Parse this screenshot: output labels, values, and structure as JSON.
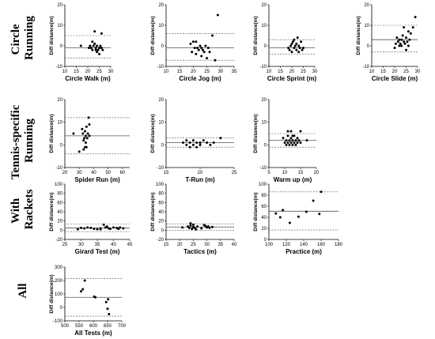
{
  "row_labels": [
    [
      "Circle",
      "Running"
    ],
    [
      "Tennis-specific",
      "Running"
    ],
    [
      "With",
      "Rackets"
    ],
    [
      "All"
    ]
  ],
  "chart_data": [
    {
      "type": "scatter",
      "xlabel": "Circle Walk (m)",
      "ylabel": "Diff distance(m)",
      "xlim": [
        10,
        30
      ],
      "ylim": [
        -10,
        20
      ],
      "xticks": [
        10,
        15,
        20,
        25,
        30
      ],
      "yticks": [
        -10,
        0,
        10,
        20
      ],
      "hlines": [
        5,
        -1,
        -6
      ],
      "points": [
        [
          17,
          0
        ],
        [
          20.5,
          -1
        ],
        [
          21,
          0
        ],
        [
          21.5,
          -1
        ],
        [
          22,
          2
        ],
        [
          22,
          -2
        ],
        [
          22.5,
          0
        ],
        [
          23,
          7
        ],
        [
          23,
          1
        ],
        [
          23.5,
          -1
        ],
        [
          24,
          -3
        ],
        [
          24,
          0
        ],
        [
          24.5,
          -2
        ],
        [
          25,
          -4
        ],
        [
          25,
          -1
        ],
        [
          25.5,
          0
        ],
        [
          26,
          6
        ],
        [
          26,
          -1
        ],
        [
          26.5,
          -2
        ],
        [
          23.5,
          -2
        ]
      ]
    },
    {
      "type": "scatter",
      "xlabel": "Circle Jog (m)",
      "ylabel": "Diff distance(m)",
      "xlim": [
        10,
        35
      ],
      "ylim": [
        -10,
        20
      ],
      "xticks": [
        10,
        15,
        20,
        25,
        30,
        35
      ],
      "yticks": [
        -10,
        0,
        10,
        20
      ],
      "hlines": [
        6,
        -1,
        -7
      ],
      "points": [
        [
          19,
          1
        ],
        [
          19.5,
          -3
        ],
        [
          20,
          2
        ],
        [
          20.5,
          -1
        ],
        [
          21,
          -4
        ],
        [
          21,
          2
        ],
        [
          21.5,
          -1
        ],
        [
          22,
          -2
        ],
        [
          22.5,
          0
        ],
        [
          23,
          -5
        ],
        [
          23,
          -1
        ],
        [
          23.5,
          -2
        ],
        [
          24,
          -3
        ],
        [
          24.5,
          0
        ],
        [
          25,
          -6
        ],
        [
          25.5,
          -1
        ],
        [
          26,
          -3
        ],
        [
          27,
          5
        ],
        [
          28,
          -7
        ],
        [
          29,
          15
        ]
      ]
    },
    {
      "type": "scatter",
      "xlabel": "Circle Sprint (m)",
      "ylabel": "Diff distance(m)",
      "xlim": [
        10,
        30
      ],
      "ylim": [
        -10,
        20
      ],
      "xticks": [
        10,
        15,
        20,
        25,
        30
      ],
      "yticks": [
        -10,
        0,
        10,
        20
      ],
      "hlines": [
        3,
        -1,
        -4
      ],
      "points": [
        [
          18.5,
          -1
        ],
        [
          19,
          -2
        ],
        [
          19.5,
          0
        ],
        [
          20,
          1
        ],
        [
          20,
          -3
        ],
        [
          20.5,
          2
        ],
        [
          21,
          -1
        ],
        [
          21,
          3
        ],
        [
          21.5,
          0
        ],
        [
          22,
          -2
        ],
        [
          22,
          1
        ],
        [
          22.5,
          4
        ],
        [
          23,
          0
        ],
        [
          23,
          -3
        ],
        [
          23.5,
          -1
        ],
        [
          24,
          2
        ],
        [
          24.5,
          -2
        ],
        [
          25,
          -1
        ]
      ]
    },
    {
      "type": "scatter",
      "xlabel": "Circle Slide (m)",
      "ylabel": "Diff distance(m)",
      "xlim": [
        10,
        30
      ],
      "ylim": [
        -10,
        20
      ],
      "xticks": [
        10,
        15,
        20,
        25,
        30
      ],
      "yticks": [
        -10,
        0,
        10,
        20
      ],
      "hlines": [
        10,
        3,
        -3
      ],
      "points": [
        [
          20,
          -1
        ],
        [
          20.5,
          1
        ],
        [
          21,
          4
        ],
        [
          21.5,
          2
        ],
        [
          22,
          0
        ],
        [
          22,
          3
        ],
        [
          22.5,
          1
        ],
        [
          23,
          3
        ],
        [
          23,
          0
        ],
        [
          23.5,
          5
        ],
        [
          24,
          2
        ],
        [
          24,
          9
        ],
        [
          24.5,
          1
        ],
        [
          25,
          4
        ],
        [
          25.5,
          2
        ],
        [
          26,
          7
        ],
        [
          26,
          0
        ],
        [
          26.5,
          3
        ],
        [
          27,
          6
        ],
        [
          28,
          9
        ],
        [
          29,
          14
        ],
        [
          25,
          -2
        ]
      ]
    },
    {
      "type": "scatter",
      "xlabel": "Spider Run (m)",
      "ylabel": "Diff distance(m)",
      "xlim": [
        20,
        65
      ],
      "ylim": [
        -10,
        20
      ],
      "xticks": [
        20,
        30,
        40,
        50,
        60
      ],
      "yticks": [
        -10,
        0,
        10,
        20
      ],
      "hlines": [
        12,
        4,
        -4
      ],
      "points": [
        [
          26,
          5
        ],
        [
          30,
          -3
        ],
        [
          32,
          7
        ],
        [
          32.5,
          5
        ],
        [
          33,
          -2
        ],
        [
          33.5,
          3
        ],
        [
          34,
          6
        ],
        [
          34.5,
          4
        ],
        [
          34.5,
          1
        ],
        [
          35,
          8
        ],
        [
          35,
          -1
        ],
        [
          35.5,
          3
        ],
        [
          36,
          5
        ],
        [
          36.5,
          12
        ],
        [
          37,
          9
        ],
        [
          37,
          4
        ],
        [
          33,
          2
        ],
        [
          34,
          -1
        ]
      ]
    },
    {
      "type": "scatter",
      "xlabel": "T-Run (m)",
      "ylabel": "Diff distance(m)",
      "xlim": [
        15,
        25
      ],
      "ylim": [
        -10,
        20
      ],
      "xticks": [
        15,
        20,
        25
      ],
      "yticks": [
        -10,
        0,
        10,
        20
      ],
      "hlines": [
        3,
        1,
        -1
      ],
      "points": [
        [
          17.5,
          1
        ],
        [
          18,
          0
        ],
        [
          18,
          2
        ],
        [
          18.5,
          1
        ],
        [
          18.5,
          -1
        ],
        [
          19,
          0
        ],
        [
          19,
          2
        ],
        [
          19.5,
          1
        ],
        [
          19.5,
          -1
        ],
        [
          20,
          0
        ],
        [
          20,
          1
        ],
        [
          20.5,
          2
        ],
        [
          21,
          1
        ],
        [
          21.5,
          0
        ],
        [
          22,
          1
        ],
        [
          23,
          3
        ]
      ]
    },
    {
      "type": "scatter",
      "xlabel": "Warm up (m)",
      "ylabel": "Diff distance(m)",
      "xlim": [
        5,
        20
      ],
      "ylim": [
        -10,
        20
      ],
      "xticks": [
        5,
        10,
        15,
        20
      ],
      "yticks": [
        -10,
        0,
        10,
        20
      ],
      "hlines": [
        5,
        2,
        -1
      ],
      "points": [
        [
          9.5,
          3
        ],
        [
          10,
          1
        ],
        [
          10.5,
          0
        ],
        [
          10.5,
          2
        ],
        [
          11,
          1
        ],
        [
          11,
          4
        ],
        [
          11.5,
          0
        ],
        [
          11.5,
          2
        ],
        [
          12,
          1
        ],
        [
          12,
          3
        ],
        [
          12,
          6
        ],
        [
          12.5,
          0
        ],
        [
          12.5,
          2
        ],
        [
          13,
          1
        ],
        [
          13,
          4
        ],
        [
          13.5,
          2
        ],
        [
          13.5,
          0
        ],
        [
          14,
          3
        ],
        [
          14,
          1
        ],
        [
          14.5,
          2
        ],
        [
          15,
          6
        ],
        [
          15,
          1
        ],
        [
          17,
          2
        ],
        [
          11,
          6
        ],
        [
          12.5,
          4
        ]
      ]
    },
    {
      "type": "scatter",
      "xlabel": "Girard Test (m)",
      "ylabel": "Diff distance(m)",
      "xlim": [
        25,
        45
      ],
      "ylim": [
        -20,
        100
      ],
      "xticks": [
        25,
        30,
        35,
        40,
        45
      ],
      "yticks": [
        -20,
        0,
        20,
        40,
        60,
        80,
        100
      ],
      "hlines": [
        13,
        5,
        -3
      ],
      "points": [
        [
          29,
          2
        ],
        [
          30,
          5
        ],
        [
          31,
          4
        ],
        [
          32,
          6
        ],
        [
          33,
          5
        ],
        [
          34,
          3
        ],
        [
          35,
          2
        ],
        [
          36,
          4
        ],
        [
          37,
          12
        ],
        [
          37.5,
          6
        ],
        [
          38,
          8
        ],
        [
          38.5,
          4
        ],
        [
          39,
          3
        ],
        [
          40,
          6
        ],
        [
          41,
          5
        ],
        [
          41.5,
          3
        ],
        [
          42,
          6
        ],
        [
          43,
          4
        ],
        [
          36,
          2
        ]
      ]
    },
    {
      "type": "scatter",
      "xlabel": "Tactics (m)",
      "ylabel": "Diff distance(m)",
      "xlim": [
        15,
        40
      ],
      "ylim": [
        -20,
        100
      ],
      "xticks": [
        15,
        20,
        25,
        30,
        35,
        40
      ],
      "yticks": [
        -20,
        0,
        20,
        40,
        60,
        80,
        100
      ],
      "hlines": [
        14,
        7,
        0
      ],
      "points": [
        [
          21,
          6
        ],
        [
          23,
          8
        ],
        [
          23.5,
          5
        ],
        [
          24,
          10
        ],
        [
          24,
          15
        ],
        [
          24.5,
          3
        ],
        [
          25,
          7
        ],
        [
          25,
          12
        ],
        [
          25.5,
          5
        ],
        [
          26,
          2
        ],
        [
          26.5,
          8
        ],
        [
          28,
          4
        ],
        [
          29,
          11
        ],
        [
          29.5,
          9
        ],
        [
          30,
          6
        ],
        [
          30.5,
          8
        ],
        [
          31,
          5
        ],
        [
          32,
          7
        ]
      ]
    },
    {
      "type": "scatter",
      "xlabel": "Practice (m)",
      "ylabel": "Diff distance(m)",
      "xlim": [
        100,
        180
      ],
      "ylim": [
        0,
        100
      ],
      "xticks": [
        100,
        120,
        140,
        160,
        180
      ],
      "yticks": [
        0,
        20,
        40,
        60,
        80,
        100
      ],
      "hlines": [
        86,
        51,
        17
      ],
      "points": [
        [
          108,
          47
        ],
        [
          113,
          40
        ],
        [
          116,
          53
        ],
        [
          124,
          30
        ],
        [
          134,
          41
        ],
        [
          143,
          50
        ],
        [
          151,
          70
        ],
        [
          158,
          46
        ],
        [
          160,
          86
        ]
      ]
    },
    {
      "type": "scatter",
      "xlabel": "All Tests (m)",
      "ylabel": "Diff distance(m)",
      "xlim": [
        500,
        700
      ],
      "ylim": [
        -100,
        300
      ],
      "xticks": [
        500,
        550,
        600,
        650,
        700
      ],
      "yticks": [
        -100,
        0,
        100,
        200,
        300
      ],
      "hlines": [
        215,
        75,
        -65
      ],
      "points": [
        [
          557,
          120
        ],
        [
          563,
          135
        ],
        [
          570,
          200
        ],
        [
          603,
          80
        ],
        [
          607,
          75
        ],
        [
          645,
          40
        ],
        [
          650,
          -10
        ],
        [
          652,
          60
        ],
        [
          655,
          -50
        ]
      ]
    }
  ]
}
